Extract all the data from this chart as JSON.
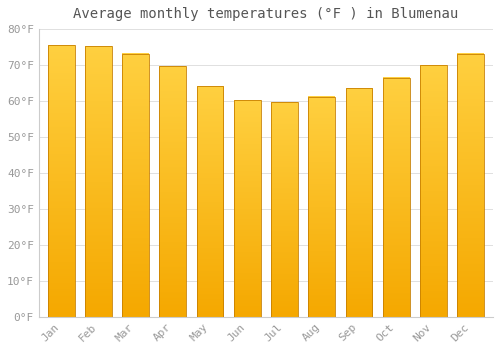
{
  "title": "Average monthly temperatures (°F ) in Blumenau",
  "months": [
    "Jan",
    "Feb",
    "Mar",
    "Apr",
    "May",
    "Jun",
    "Jul",
    "Aug",
    "Sep",
    "Oct",
    "Nov",
    "Dec"
  ],
  "values": [
    75.5,
    75.2,
    73.2,
    69.6,
    64.2,
    60.3,
    59.7,
    61.2,
    63.5,
    66.5,
    70.0,
    73.2
  ],
  "bar_color_top": "#FFD040",
  "bar_color_bottom": "#F5A800",
  "bar_edge_color": "#C88000",
  "ylim": [
    0,
    80
  ],
  "yticks": [
    0,
    10,
    20,
    30,
    40,
    50,
    60,
    70,
    80
  ],
  "ytick_labels": [
    "0°F",
    "10°F",
    "20°F",
    "30°F",
    "40°F",
    "50°F",
    "60°F",
    "70°F",
    "80°F"
  ],
  "background_color": "#ffffff",
  "grid_color": "#e0e0e0",
  "title_fontsize": 10,
  "tick_fontsize": 8,
  "tick_color": "#999999",
  "title_color": "#555555",
  "bar_width": 0.72
}
